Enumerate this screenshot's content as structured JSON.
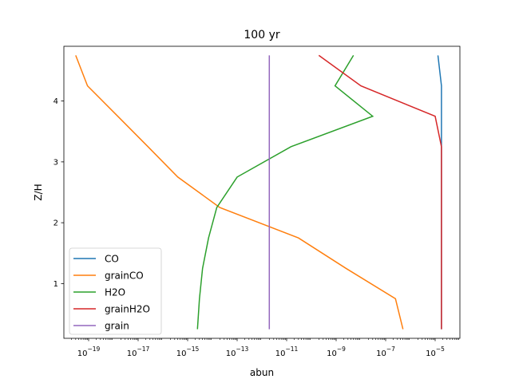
{
  "chart_data": {
    "type": "line",
    "title": "100 yr",
    "xlabel": "abun",
    "ylabel": "Z/H",
    "x_scale": "log",
    "xlim": [
      1e-20,
      0.0001
    ],
    "ylim": [
      0.1,
      4.9
    ],
    "x_ticks": [
      {
        "value": 1e-19,
        "base": "10",
        "exp": "−19"
      },
      {
        "value": 1e-17,
        "base": "10",
        "exp": "−17"
      },
      {
        "value": 1e-15,
        "base": "10",
        "exp": "−15"
      },
      {
        "value": 1e-13,
        "base": "10",
        "exp": "−13"
      },
      {
        "value": 1e-11,
        "base": "10",
        "exp": "−11"
      },
      {
        "value": 1e-09,
        "base": "10",
        "exp": "−9"
      },
      {
        "value": 1e-07,
        "base": "10",
        "exp": "−7"
      },
      {
        "value": 1e-05,
        "base": "10",
        "exp": "−5"
      }
    ],
    "y_ticks": [
      {
        "value": 1,
        "label": "1"
      },
      {
        "value": 2,
        "label": "2"
      },
      {
        "value": 3,
        "label": "3"
      },
      {
        "value": 4,
        "label": "4"
      }
    ],
    "grid": false,
    "legend_position": "lower-left",
    "y": [
      0.25,
      0.75,
      1.25,
      1.75,
      2.25,
      2.75,
      3.25,
      3.75,
      4.25,
      4.75
    ],
    "series": [
      {
        "name": "CO",
        "color": "#1f77b4",
        "x": [
          1.8e-05,
          1.8e-05,
          1.8e-05,
          1.8e-05,
          1.8e-05,
          1.8e-05,
          1.8e-05,
          1.8e-05,
          1.8e-05,
          1.3e-05
        ]
      },
      {
        "name": "grainCO",
        "color": "#ff7f0e",
        "x": [
          5e-07,
          2.5e-07,
          2.5e-09,
          3e-11,
          2e-14,
          4e-16,
          2.5e-17,
          1.5e-18,
          9e-20,
          3e-20
        ]
      },
      {
        "name": "H2O",
        "color": "#2ca02c",
        "x": [
          2.5e-15,
          3e-15,
          4e-15,
          7e-15,
          1.5e-14,
          1e-13,
          1.5e-11,
          3e-08,
          9e-10,
          5e-09
        ]
      },
      {
        "name": "grainH2O",
        "color": "#d62728",
        "x": [
          1.8e-05,
          1.8e-05,
          1.8e-05,
          1.8e-05,
          1.8e-05,
          1.8e-05,
          1.8e-05,
          1e-05,
          1e-08,
          2e-10
        ]
      },
      {
        "name": "grain",
        "color": "#9467bd",
        "x": [
          2e-12,
          2e-12,
          2e-12,
          2e-12,
          2e-12,
          2e-12,
          2e-12,
          2e-12,
          2e-12,
          2e-12
        ]
      }
    ]
  }
}
